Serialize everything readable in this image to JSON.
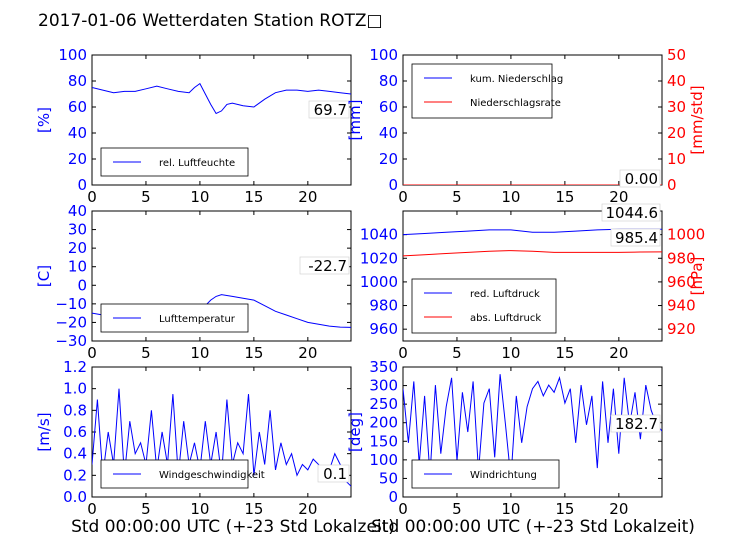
{
  "title": "2017-01-06 Wetterdaten Station ROTZ□",
  "xlabel": "Std 00:00:00 UTC (+-23 Std Lokalzeit)",
  "x_ticks": [
    "0",
    "5",
    "10",
    "15",
    "20"
  ],
  "colors": {
    "left_axis": "#0000ff",
    "right_axis": "#ff0000"
  },
  "chart_data": [
    {
      "type": "line",
      "ylabel": "[%]",
      "ylim": [
        0,
        100
      ],
      "y_ticks": [
        "0",
        "20",
        "40",
        "60",
        "80",
        "100"
      ],
      "xlim": [
        0,
        24
      ],
      "legend": [
        "rel. Luftfeuchte"
      ],
      "legend_position": "lower-left",
      "value_label": "69.7",
      "series": [
        {
          "name": "rel. Luftfeuchte",
          "color": "#0000ff",
          "x": [
            0,
            1,
            2,
            3,
            4,
            5,
            6,
            7,
            8,
            9,
            9.5,
            10,
            10.5,
            11,
            11.5,
            12,
            12.5,
            13,
            14,
            15,
            16,
            17,
            18,
            19,
            20,
            21,
            22,
            23,
            24
          ],
          "y": [
            75,
            73,
            71,
            72,
            72,
            74,
            76,
            74,
            72,
            71,
            75,
            78,
            70,
            62,
            55,
            57,
            62,
            63,
            61,
            60,
            66,
            71,
            73,
            73,
            72,
            73,
            72,
            71,
            70
          ]
        }
      ]
    },
    {
      "type": "line",
      "ylabel": "[mm]",
      "ylabel_right": "[mm/std]",
      "ylim": [
        0,
        100
      ],
      "ylim_right": [
        0,
        50
      ],
      "y_ticks": [
        "0",
        "20",
        "40",
        "60",
        "80",
        "100"
      ],
      "y_ticks_right": [
        "0",
        "10",
        "20",
        "30",
        "40",
        "50"
      ],
      "xlim": [
        0,
        24
      ],
      "legend": [
        "kum. Niederschlag",
        "Niederschlagsrate"
      ],
      "legend_position": "upper-left",
      "value_label": "0.00",
      "series": [
        {
          "name": "kum. Niederschlag",
          "color": "#0000ff",
          "x": [
            0,
            24
          ],
          "y": [
            0,
            0
          ]
        },
        {
          "name": "Niederschlagsrate",
          "color": "#ff0000",
          "x": [
            0,
            24
          ],
          "y": [
            0,
            0
          ]
        }
      ]
    },
    {
      "type": "line",
      "ylabel": "[C]",
      "ylim": [
        -30,
        40
      ],
      "y_ticks": [
        "−30",
        "−20",
        "−10",
        "0",
        "10",
        "20",
        "30",
        "40"
      ],
      "xlim": [
        0,
        24
      ],
      "legend": [
        "Lufttemperatur"
      ],
      "legend_position": "lower-left",
      "value_label": "-22.7",
      "series": [
        {
          "name": "Lufttemperatur",
          "color": "#0000ff",
          "x": [
            0,
            1,
            2,
            3,
            4,
            5,
            6,
            7,
            8,
            9,
            10,
            10.5,
            11,
            11.5,
            12,
            13,
            14,
            15,
            16,
            17,
            18,
            19,
            20,
            21,
            22,
            23,
            24
          ],
          "y": [
            -15,
            -16,
            -17,
            -18,
            -19,
            -20,
            -20,
            -19,
            -17,
            -15,
            -13,
            -11,
            -8,
            -6,
            -5,
            -6,
            -7,
            -8,
            -11,
            -14,
            -16,
            -18,
            -20,
            -21,
            -22,
            -22.5,
            -22.7
          ]
        }
      ]
    },
    {
      "type": "line",
      "ylabel_right": "[hPa]",
      "ylim": [
        950,
        1060
      ],
      "ylim_right": [
        910,
        1020
      ],
      "y_ticks": [
        "960",
        "980",
        "1000",
        "1020",
        "1040"
      ],
      "y_ticks_right": [
        "920",
        "940",
        "960",
        "980",
        "1000"
      ],
      "xlim": [
        0,
        24
      ],
      "legend": [
        "red. Luftdruck",
        "abs. Luftdruck"
      ],
      "legend_position": "lower-left",
      "value_labels": [
        "1044.6",
        "985.4"
      ],
      "series": [
        {
          "name": "red. Luftdruck",
          "color": "#0000ff",
          "axis": "left",
          "x": [
            0,
            2,
            4,
            6,
            8,
            10,
            12,
            14,
            16,
            18,
            20,
            22,
            24
          ],
          "y": [
            1040,
            1041,
            1042,
            1043,
            1044,
            1044,
            1042,
            1042,
            1043,
            1044,
            1044.5,
            1044.6,
            1044.6
          ]
        },
        {
          "name": "abs. Luftdruck",
          "color": "#ff0000",
          "axis": "right",
          "x": [
            0,
            2,
            4,
            6,
            8,
            10,
            12,
            14,
            16,
            18,
            20,
            22,
            24
          ],
          "y": [
            982,
            983,
            984,
            985,
            986,
            986.5,
            986,
            985,
            985,
            985,
            985,
            985.3,
            985.4
          ]
        }
      ]
    },
    {
      "type": "line",
      "ylabel": "[m/s]",
      "ylim": [
        0,
        1.2
      ],
      "y_ticks": [
        "0.0",
        "0.2",
        "0.4",
        "0.6",
        "0.8",
        "1.0",
        "1.2"
      ],
      "xlim": [
        0,
        24
      ],
      "legend": [
        "Windgeschwindigkeit"
      ],
      "legend_position": "lower-left",
      "value_label": "0.1",
      "series": [
        {
          "name": "Windgeschwindigkeit",
          "color": "#0000ff",
          "x": [
            0,
            0.5,
            1,
            1.5,
            2,
            2.5,
            3,
            3.5,
            4,
            4.5,
            5,
            5.5,
            6,
            6.5,
            7,
            7.5,
            8,
            8.5,
            9,
            9.5,
            10,
            10.5,
            11,
            11.5,
            12,
            12.5,
            13,
            13.5,
            14,
            14.5,
            15,
            15.5,
            16,
            16.5,
            17,
            17.5,
            18,
            18.5,
            19,
            19.5,
            20,
            20.5,
            21,
            21.5,
            22,
            22.5,
            23,
            23.5,
            24
          ],
          "y": [
            0.3,
            0.9,
            0.2,
            0.6,
            0.3,
            1.0,
            0.2,
            0.7,
            0.4,
            0.5,
            0.3,
            0.8,
            0.25,
            0.6,
            0.3,
            0.95,
            0.2,
            0.7,
            0.3,
            0.5,
            0.25,
            0.7,
            0.3,
            0.6,
            0.2,
            0.9,
            0.3,
            0.5,
            0.4,
            0.95,
            0.2,
            0.6,
            0.3,
            0.8,
            0.25,
            0.5,
            0.3,
            0.4,
            0.2,
            0.3,
            0.25,
            0.35,
            0.3,
            0.2,
            0.25,
            0.4,
            0.3,
            0.15,
            0.1
          ]
        }
      ]
    },
    {
      "type": "line",
      "ylabel": "[deg]",
      "ylim": [
        0,
        360
      ],
      "y_ticks": [
        "0",
        "50",
        "100",
        "150",
        "200",
        "250",
        "300",
        "350"
      ],
      "xlim": [
        0,
        24
      ],
      "legend": [
        "Windrichtung"
      ],
      "legend_position": "lower-left",
      "value_label": "182.7",
      "series": [
        {
          "name": "Windrichtung",
          "color": "#0000ff",
          "x": [
            0,
            0.5,
            1,
            1.5,
            2,
            2.5,
            3,
            3.5,
            4,
            4.5,
            5,
            5.5,
            6,
            6.5,
            7,
            7.5,
            8,
            8.5,
            9,
            9.5,
            10,
            10.5,
            11,
            11.5,
            12,
            12.5,
            13,
            13.5,
            14,
            14.5,
            15,
            15.5,
            16,
            16.5,
            17,
            17.5,
            18,
            18.5,
            19,
            19.5,
            20,
            20.5,
            21,
            21.5,
            22,
            22.5,
            23,
            23.5,
            24
          ],
          "y": [
            300,
            150,
            320,
            90,
            280,
            60,
            310,
            120,
            250,
            330,
            100,
            290,
            180,
            320,
            70,
            260,
            300,
            110,
            340,
            200,
            50,
            280,
            150,
            250,
            300,
            320,
            280,
            310,
            290,
            330,
            260,
            300,
            150,
            310,
            200,
            280,
            80,
            320,
            150,
            300,
            120,
            330,
            200,
            290,
            160,
            310,
            240,
            200,
            182.7
          ]
        }
      ]
    }
  ]
}
